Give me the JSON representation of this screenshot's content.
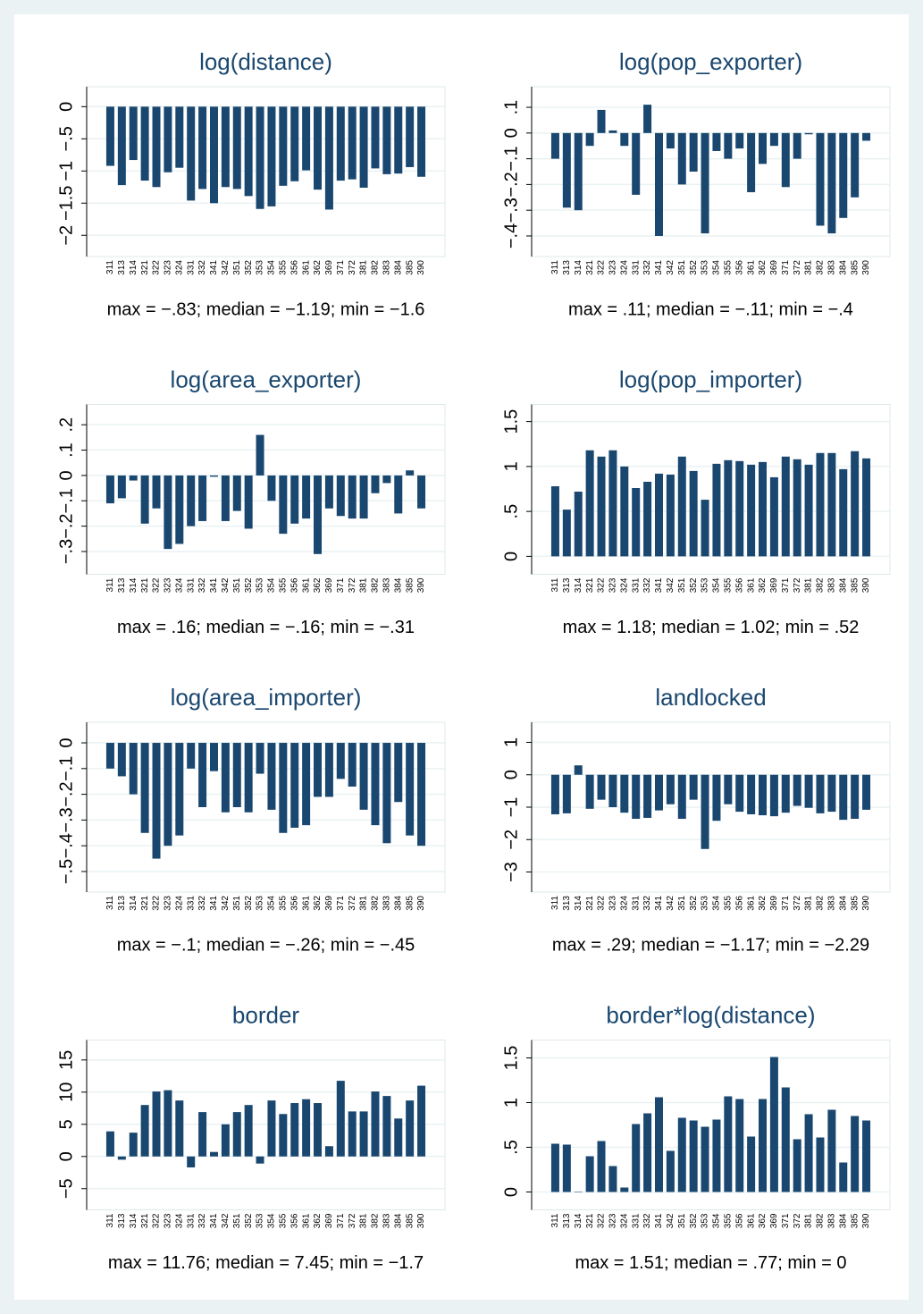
{
  "chart_data": [
    {
      "type": "bar",
      "title": "log(distance)",
      "color": "#1a476f",
      "categories": [
        "311",
        "313",
        "314",
        "321",
        "322",
        "323",
        "324",
        "331",
        "332",
        "341",
        "342",
        "351",
        "352",
        "353",
        "354",
        "355",
        "356",
        "361",
        "362",
        "369",
        "371",
        "372",
        "381",
        "382",
        "383",
        "384",
        "385",
        "390"
      ],
      "values": [
        -0.92,
        -1.22,
        -0.83,
        -1.15,
        -1.25,
        -1.02,
        -0.95,
        -1.46,
        -1.28,
        -1.5,
        -1.25,
        -1.28,
        -1.39,
        -1.59,
        -1.55,
        -1.23,
        -1.16,
        -0.99,
        -1.29,
        -1.6,
        -1.15,
        -1.13,
        -1.26,
        -0.96,
        -1.05,
        -1.04,
        -0.94,
        -1.09
      ],
      "ylim": [
        -2.33,
        0.31
      ],
      "yticks": [
        {
          "value": -2,
          "label": "−2"
        },
        {
          "value": -1.5,
          "label": "−1.5"
        },
        {
          "value": -1,
          "label": "−1"
        },
        {
          "value": -0.5,
          "label": "−.5"
        },
        0
      ],
      "annotation": "max = −.83; median = −1.19; min = −1.6"
    },
    {
      "type": "bar",
      "title": "log(pop_exporter)",
      "color": "#1a476f",
      "categories": [
        "311",
        "313",
        "314",
        "321",
        "322",
        "323",
        "324",
        "331",
        "332",
        "341",
        "342",
        "351",
        "352",
        "353",
        "354",
        "355",
        "356",
        "361",
        "362",
        "369",
        "371",
        "372",
        "381",
        "382",
        "383",
        "384",
        "385",
        "390"
      ],
      "values": [
        -0.1,
        -0.29,
        -0.3,
        -0.05,
        0.09,
        0.01,
        -0.05,
        -0.24,
        0.11,
        -0.4,
        -0.06,
        -0.2,
        -0.15,
        -0.39,
        -0.07,
        -0.1,
        -0.06,
        -0.23,
        -0.12,
        -0.05,
        -0.21,
        -0.1,
        -0.005,
        -0.36,
        -0.39,
        -0.33,
        -0.25,
        -0.03
      ],
      "ylim": [
        -0.48,
        0.18
      ],
      "yticks": [
        {
          "value": -0.4,
          "label": "−.4"
        },
        {
          "value": -0.3,
          "label": "−.3"
        },
        {
          "value": -0.2,
          "label": "−.2"
        },
        {
          "value": -0.1,
          "label": "−.1"
        },
        0,
        {
          "value": 0.1,
          "label": ".1"
        }
      ],
      "annotation": "max = .11; median = −.11; min = −.4"
    },
    {
      "type": "bar",
      "title": "log(area_exporter)",
      "color": "#1a476f",
      "categories": [
        "311",
        "313",
        "314",
        "321",
        "322",
        "323",
        "324",
        "331",
        "332",
        "341",
        "342",
        "351",
        "352",
        "353",
        "354",
        "355",
        "356",
        "361",
        "362",
        "369",
        "371",
        "372",
        "381",
        "382",
        "383",
        "384",
        "385",
        "390"
      ],
      "values": [
        -0.11,
        -0.09,
        -0.02,
        -0.19,
        -0.13,
        -0.29,
        -0.27,
        -0.2,
        -0.18,
        -0.005,
        -0.18,
        -0.14,
        -0.21,
        0.16,
        -0.1,
        -0.23,
        -0.19,
        -0.17,
        -0.31,
        -0.13,
        -0.16,
        -0.17,
        -0.17,
        -0.07,
        -0.03,
        -0.15,
        0.02,
        -0.13
      ],
      "ylim": [
        -0.39,
        0.28
      ],
      "yticks": [
        {
          "value": -0.3,
          "label": "−.3"
        },
        {
          "value": -0.2,
          "label": "−.2"
        },
        {
          "value": -0.1,
          "label": "−.1"
        },
        0,
        {
          "value": 0.1,
          "label": ".1"
        },
        {
          "value": 0.2,
          "label": ".2"
        }
      ],
      "annotation": "max = .16; median = −.16; min = −.31"
    },
    {
      "type": "bar",
      "title": "log(pop_importer)",
      "color": "#1a476f",
      "categories": [
        "311",
        "313",
        "314",
        "321",
        "322",
        "323",
        "324",
        "331",
        "332",
        "341",
        "342",
        "351",
        "352",
        "353",
        "354",
        "355",
        "356",
        "361",
        "362",
        "369",
        "371",
        "372",
        "381",
        "382",
        "383",
        "384",
        "385",
        "390"
      ],
      "values": [
        0.78,
        0.52,
        0.72,
        1.18,
        1.11,
        1.18,
        1.0,
        0.76,
        0.83,
        0.92,
        0.91,
        1.11,
        0.95,
        0.63,
        1.03,
        1.07,
        1.06,
        1.02,
        1.05,
        0.88,
        1.11,
        1.08,
        1.02,
        1.15,
        1.15,
        0.97,
        1.17,
        1.09
      ],
      "ylim": [
        -0.2,
        1.69
      ],
      "yticks": [
        0,
        {
          "value": 0.5,
          "label": ".5"
        },
        1,
        1.5
      ],
      "annotation": "max = 1.18; median = 1.02; min = .52"
    },
    {
      "type": "bar",
      "title": "log(area_importer)",
      "color": "#1a476f",
      "categories": [
        "311",
        "313",
        "314",
        "321",
        "322",
        "323",
        "324",
        "331",
        "332",
        "341",
        "342",
        "351",
        "352",
        "353",
        "354",
        "355",
        "356",
        "361",
        "362",
        "369",
        "371",
        "372",
        "381",
        "382",
        "383",
        "384",
        "385",
        "390"
      ],
      "values": [
        -0.1,
        -0.13,
        -0.2,
        -0.35,
        -0.45,
        -0.4,
        -0.36,
        -0.1,
        -0.25,
        -0.11,
        -0.27,
        -0.25,
        -0.27,
        -0.12,
        -0.26,
        -0.35,
        -0.33,
        -0.32,
        -0.21,
        -0.21,
        -0.14,
        -0.17,
        -0.26,
        -0.32,
        -0.39,
        -0.23,
        -0.36,
        -0.4
      ],
      "ylim": [
        -0.58,
        0.08
      ],
      "yticks": [
        {
          "value": -0.5,
          "label": "−.5"
        },
        {
          "value": -0.4,
          "label": "−.4"
        },
        {
          "value": -0.3,
          "label": "−.3"
        },
        {
          "value": -0.2,
          "label": "−.2"
        },
        {
          "value": -0.1,
          "label": "−.1"
        },
        0
      ],
      "annotation": "max = −.1; median = −.26; min = −.45"
    },
    {
      "type": "bar",
      "title": "landlocked",
      "color": "#1a476f",
      "categories": [
        "311",
        "313",
        "314",
        "321",
        "322",
        "323",
        "324",
        "331",
        "332",
        "341",
        "342",
        "351",
        "352",
        "353",
        "354",
        "355",
        "356",
        "361",
        "362",
        "369",
        "371",
        "372",
        "381",
        "382",
        "383",
        "384",
        "385",
        "390"
      ],
      "values": [
        -1.22,
        -1.19,
        0.29,
        -1.05,
        -0.77,
        -1.0,
        -1.17,
        -1.36,
        -1.33,
        -1.1,
        -0.91,
        -1.36,
        -0.77,
        -2.29,
        -1.42,
        -0.91,
        -1.14,
        -1.22,
        -1.25,
        -1.28,
        -1.17,
        -0.96,
        -1.02,
        -1.19,
        -1.14,
        -1.39,
        -1.36,
        -1.08
      ],
      "ylim": [
        -3.62,
        1.62
      ],
      "yticks": [
        {
          "value": -3,
          "label": "−3"
        },
        {
          "value": -2,
          "label": "−2"
        },
        {
          "value": -1,
          "label": "−1"
        },
        0,
        1
      ],
      "annotation": "max = .29; median = −1.17; min = −2.29"
    },
    {
      "type": "bar",
      "title": "border",
      "color": "#1a476f",
      "categories": [
        "311",
        "313",
        "314",
        "321",
        "322",
        "323",
        "324",
        "331",
        "332",
        "341",
        "342",
        "351",
        "352",
        "353",
        "354",
        "355",
        "356",
        "361",
        "362",
        "369",
        "371",
        "372",
        "381",
        "382",
        "383",
        "384",
        "385",
        "390"
      ],
      "values": [
        3.9,
        -0.5,
        3.7,
        8.0,
        10.1,
        10.3,
        8.7,
        -1.7,
        6.9,
        0.7,
        5.0,
        6.9,
        8.0,
        -1.1,
        8.7,
        6.6,
        8.3,
        8.9,
        8.3,
        1.6,
        11.76,
        7.0,
        7.0,
        10.1,
        9.4,
        5.9,
        8.7,
        11.0
      ],
      "ylim": [
        -8.3,
        18.1
      ],
      "yticks": [
        {
          "value": -5,
          "label": "−5"
        },
        0,
        5,
        10,
        15
      ],
      "annotation": "max = 11.76; median = 7.45; min = −1.7"
    },
    {
      "type": "bar",
      "title": "border*log(distance)",
      "color": "#1a476f",
      "categories": [
        "311",
        "313",
        "314",
        "321",
        "322",
        "323",
        "324",
        "331",
        "332",
        "341",
        "342",
        "351",
        "352",
        "353",
        "354",
        "355",
        "356",
        "361",
        "362",
        "369",
        "371",
        "372",
        "381",
        "382",
        "383",
        "384",
        "385",
        "390"
      ],
      "values": [
        0.54,
        0.53,
        0,
        0.4,
        0.57,
        0.29,
        0.05,
        0.76,
        0.88,
        1.06,
        0.46,
        0.83,
        0.8,
        0.73,
        0.81,
        1.07,
        1.04,
        0.62,
        1.04,
        1.51,
        1.17,
        0.59,
        0.87,
        0.61,
        0.92,
        0.33,
        0.85,
        0.8
      ],
      "ylim": [
        -0.2,
        1.7
      ],
      "yticks": [
        0,
        {
          "value": 0.5,
          "label": ".5"
        },
        1,
        1.5
      ],
      "annotation": "max = 1.51; median = .77; min = 0"
    }
  ]
}
